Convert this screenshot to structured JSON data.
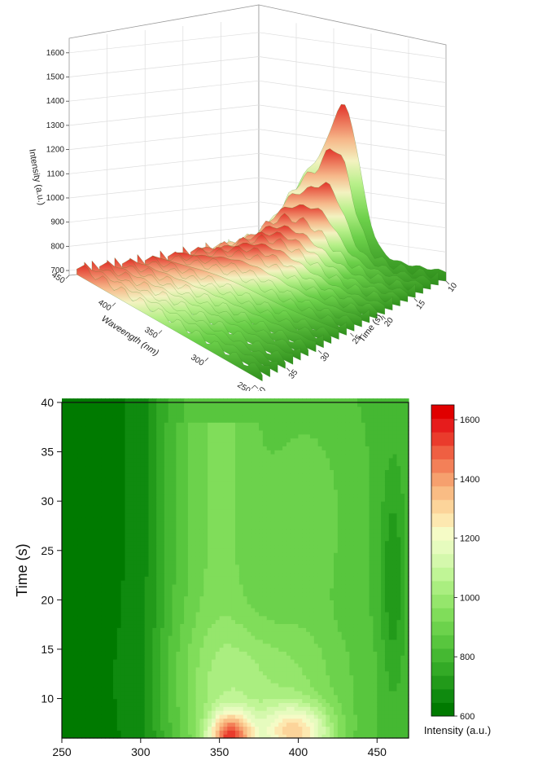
{
  "chart_data": [
    {
      "type": "surface",
      "zlabel": "Intensity (a.u.)",
      "xlabel": "Waveength (nm)",
      "ylabel": "Time (s)",
      "zticks": [
        "700",
        "800",
        "900",
        "1000",
        "1100",
        "1200",
        "1300",
        "1400",
        "1500",
        "1600"
      ],
      "xticks": [
        "450",
        "400",
        "350",
        "300",
        "250"
      ],
      "yticks": [
        "10",
        "15",
        "20",
        "25",
        "30",
        "35",
        "40"
      ],
      "zlim": [
        680,
        1660
      ],
      "xlim": [
        250,
        470
      ],
      "ylim": [
        6,
        40
      ],
      "grid": true,
      "peak": {
        "wavelength": 357,
        "time": 7,
        "intensity": 1650
      }
    },
    {
      "type": "contour",
      "xlabel": "",
      "ylabel": "Time (s)",
      "xticks": [
        "250",
        "300",
        "350",
        "400",
        "450"
      ],
      "yticks": [
        "10",
        "15",
        "20",
        "25",
        "30",
        "35",
        "40"
      ],
      "xlim": [
        250,
        470
      ],
      "ylim": [
        6,
        40
      ],
      "colorbar": {
        "label": "Intensity (a.u.)",
        "ticks": [
          "600",
          "800",
          "1000",
          "1200",
          "1400",
          "1600"
        ],
        "range": [
          600,
          1650
        ],
        "colors": [
          "#007a00",
          "#0f8a0f",
          "#229a1a",
          "#33aa26",
          "#45b832",
          "#58c63e",
          "#6cd24c",
          "#80dd5a",
          "#95e66c",
          "#aaee80",
          "#c0f596",
          "#d4f8ac",
          "#e6fbbe",
          "#f5fbc6",
          "#fde8b0",
          "#fcd49a",
          "#f9bc84",
          "#f6a06e",
          "#f38058",
          "#ef5f42",
          "#ea3b2c",
          "#e61c1c",
          "#e00000"
        ]
      }
    }
  ]
}
